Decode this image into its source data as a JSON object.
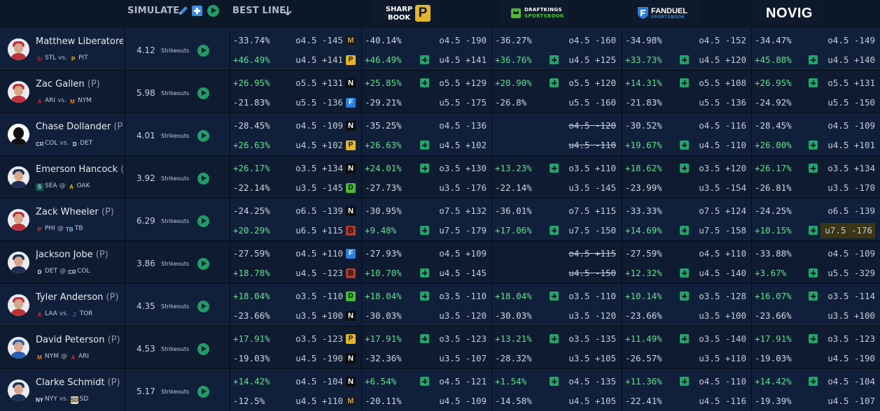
{
  "header": {
    "simulate_label": "SIMULATE",
    "best_line_label": "BEST LINE",
    "books": [
      {
        "key": "sharp",
        "w1": "SHARP",
        "w2": "BOOK",
        "mark": "P"
      },
      {
        "key": "dk",
        "w1": "DRAFTKINGS",
        "w2": "SPORTSBOOK"
      },
      {
        "key": "fd",
        "w1": "FANDUEL",
        "w2": "SPORTSBOOK"
      },
      {
        "key": "nv",
        "w1": "NOVIG"
      }
    ]
  },
  "colors": {
    "accent_green": "#5fe08d",
    "button_green": "#20a66a",
    "bg": "#0c1727"
  },
  "rows": [
    {
      "name": "Matthew Liberatore",
      "pos": "",
      "avatar": "red",
      "away": "STL",
      "sep": "vs.",
      "home": "PIT",
      "away_logo": "stl",
      "home_logo": "pit",
      "proj": "4.12",
      "stat": "Strikeouts",
      "best": [
        {
          "pct": "-33.74%",
          "odds": "o4.5 -145",
          "bk": "betmgm"
        },
        {
          "pct": "+46.49%",
          "odds": "u4.5 +141",
          "bk": "sharp"
        }
      ],
      "sharp": [
        {
          "pct": "-40.14%",
          "odds": "o4.5 -190",
          "add": false
        },
        {
          "pct": "+46.49%",
          "odds": "u4.5 +141",
          "add": true
        }
      ],
      "dk": [
        {
          "pct": "-36.27%",
          "odds": "o4.5 -160",
          "add": false
        },
        {
          "pct": "+36.76%",
          "odds": "u4.5 +125",
          "add": true
        }
      ],
      "fd": [
        {
          "pct": "-34.98%",
          "odds": "o4.5 -152",
          "add": false
        },
        {
          "pct": "+33.73%",
          "odds": "u4.5 +120",
          "add": true
        }
      ],
      "nv": [
        {
          "pct": "-34.47%",
          "odds": "o4.5 -149",
          "add": false
        },
        {
          "pct": "+45.88%",
          "odds": "u4.5 +140",
          "add": true
        }
      ]
    },
    {
      "name": "Zac Gallen",
      "pos": "(P)",
      "avatar": "red",
      "away": "ARI",
      "sep": "vs.",
      "home": "NYM",
      "away_logo": "ari",
      "home_logo": "nym",
      "proj": "5.98",
      "stat": "Strikeouts",
      "best": [
        {
          "pct": "+26.95%",
          "odds": "o5.5 +131",
          "bk": "novig"
        },
        {
          "pct": "-21.83%",
          "odds": "u5.5 -136",
          "bk": "fanduel"
        }
      ],
      "sharp": [
        {
          "pct": "+25.85%",
          "odds": "o5.5 +129",
          "add": true
        },
        {
          "pct": "-29.21%",
          "odds": "u5.5 -175",
          "add": false
        }
      ],
      "dk": [
        {
          "pct": "+20.90%",
          "odds": "o5.5 +120",
          "add": true
        },
        {
          "pct": "-26.8%",
          "odds": "u5.5 -160",
          "add": false
        }
      ],
      "fd": [
        {
          "pct": "+14.31%",
          "odds": "o5.5 +108",
          "add": true
        },
        {
          "pct": "-21.83%",
          "odds": "u5.5 -136",
          "add": false
        }
      ],
      "nv": [
        {
          "pct": "+26.95%",
          "odds": "o5.5 +131",
          "add": true
        },
        {
          "pct": "-24.92%",
          "odds": "u5.5 -150",
          "add": false
        }
      ]
    },
    {
      "name": "Chase Dollander",
      "pos": "(P)",
      "avatar": "blank",
      "away": "COL",
      "sep": "vs.",
      "home": "DET",
      "away_logo": "col",
      "home_logo": "det",
      "proj": "4.01",
      "stat": "Strikeouts",
      "best": [
        {
          "pct": "-28.45%",
          "odds": "o4.5 -109",
          "bk": "novig"
        },
        {
          "pct": "+26.63%",
          "odds": "u4.5 +102",
          "bk": "sharp"
        }
      ],
      "sharp": [
        {
          "pct": "-35.25%",
          "odds": "o4.5 -136",
          "add": false
        },
        {
          "pct": "+26.63%",
          "odds": "u4.5 +102",
          "add": true
        }
      ],
      "dk": [
        {
          "pct": "",
          "odds": "o4.5 -120",
          "add": false,
          "strike": true
        },
        {
          "pct": "",
          "odds": "u4.5 -110",
          "add": false,
          "strike": true
        }
      ],
      "fd": [
        {
          "pct": "-30.52%",
          "odds": "o4.5 -116",
          "add": false
        },
        {
          "pct": "+19.67%",
          "odds": "u4.5 -110",
          "add": true
        }
      ],
      "nv": [
        {
          "pct": "-28.45%",
          "odds": "o4.5 -109",
          "add": false
        },
        {
          "pct": "+26.00%",
          "odds": "u4.5 +101",
          "add": true
        }
      ]
    },
    {
      "name": "Emerson Hancock",
      "pos": "(P)",
      "avatar": "navy",
      "away": "SEA",
      "sep": "@",
      "home": "OAK",
      "away_logo": "sea",
      "home_logo": "oak",
      "proj": "3.92",
      "stat": "Strikeouts",
      "best": [
        {
          "pct": "+26.17%",
          "odds": "o3.5 +134",
          "bk": "novig"
        },
        {
          "pct": "-22.14%",
          "odds": "u3.5 -145",
          "bk": "dk"
        }
      ],
      "sharp": [
        {
          "pct": "+24.01%",
          "odds": "o3.5 +130",
          "add": true
        },
        {
          "pct": "-27.73%",
          "odds": "u3.5 -176",
          "add": false
        }
      ],
      "dk": [
        {
          "pct": "+13.23%",
          "odds": "o3.5 +110",
          "add": true
        },
        {
          "pct": "-22.14%",
          "odds": "u3.5 -145",
          "add": false
        }
      ],
      "fd": [
        {
          "pct": "+18.62%",
          "odds": "o3.5 +120",
          "add": true
        },
        {
          "pct": "-23.99%",
          "odds": "u3.5 -154",
          "add": false
        }
      ],
      "nv": [
        {
          "pct": "+26.17%",
          "odds": "o3.5 +134",
          "add": true
        },
        {
          "pct": "-26.81%",
          "odds": "u3.5 -170",
          "add": false
        }
      ]
    },
    {
      "name": "Zack Wheeler",
      "pos": "(P)",
      "avatar": "red",
      "away": "PHI",
      "sep": "@",
      "home": "TB",
      "away_logo": "phi",
      "home_logo": "tb",
      "proj": "6.29",
      "stat": "Strikeouts",
      "best": [
        {
          "pct": "-24.25%",
          "odds": "o6.5 -139",
          "bk": "novig"
        },
        {
          "pct": "+20.29%",
          "odds": "u6.5 +115",
          "bk": "bet365"
        }
      ],
      "sharp": [
        {
          "pct": "-30.95%",
          "odds": "o7.5 +132",
          "add": false
        },
        {
          "pct": "+9.48%",
          "odds": "u7.5 -179",
          "add": true
        }
      ],
      "dk": [
        {
          "pct": "-36.01%",
          "odds": "o7.5 +115",
          "add": false
        },
        {
          "pct": "+17.06%",
          "odds": "u7.5 -150",
          "add": true
        }
      ],
      "fd": [
        {
          "pct": "-33.33%",
          "odds": "o7.5 +124",
          "add": false
        },
        {
          "pct": "+14.69%",
          "odds": "u7.5 -158",
          "add": true
        }
      ],
      "nv": [
        {
          "pct": "-24.25%",
          "odds": "o6.5 -139",
          "add": false
        },
        {
          "pct": "+10.15%",
          "odds": "u7.5 -176",
          "add": true,
          "hl": true
        }
      ]
    },
    {
      "name": "Jackson Jobe",
      "pos": "(P)",
      "avatar": "navy",
      "away": "DET",
      "sep": "@",
      "home": "COL",
      "away_logo": "det",
      "home_logo": "col",
      "proj": "3.86",
      "stat": "Strikeouts",
      "best": [
        {
          "pct": "-27.59%",
          "odds": "o4.5 +110",
          "bk": "fanduel"
        },
        {
          "pct": "+18.78%",
          "odds": "u4.5 -123",
          "bk": "bet365"
        }
      ],
      "sharp": [
        {
          "pct": "-27.93%",
          "odds": "o4.5 +109",
          "add": false
        },
        {
          "pct": "+10.70%",
          "odds": "u4.5 -145",
          "add": true
        }
      ],
      "dk": [
        {
          "pct": "",
          "odds": "o4.5 +115",
          "add": false,
          "strike": true
        },
        {
          "pct": "",
          "odds": "u4.5 -150",
          "add": false,
          "strike": true
        }
      ],
      "fd": [
        {
          "pct": "-27.59%",
          "odds": "o4.5 +110",
          "add": false
        },
        {
          "pct": "+12.32%",
          "odds": "u4.5 -140",
          "add": true
        }
      ],
      "nv": [
        {
          "pct": "-33.88%",
          "odds": "o4.5 -109",
          "add": false
        },
        {
          "pct": "+3.67%",
          "odds": "u5.5 -329",
          "add": true
        }
      ]
    },
    {
      "name": "Tyler Anderson",
      "pos": "(P)",
      "avatar": "red",
      "away": "LAA",
      "sep": "vs.",
      "home": "TOR",
      "away_logo": "laa",
      "home_logo": "tor",
      "proj": "4.35",
      "stat": "Strikeouts",
      "best": [
        {
          "pct": "+18.04%",
          "odds": "o3.5 -110",
          "bk": "dk"
        },
        {
          "pct": "-23.66%",
          "odds": "u3.5 +100",
          "bk": "novig"
        }
      ],
      "sharp": [
        {
          "pct": "+18.04%",
          "odds": "o3.5 -110",
          "add": true
        },
        {
          "pct": "-30.03%",
          "odds": "u3.5 -120",
          "add": false
        }
      ],
      "dk": [
        {
          "pct": "+18.04%",
          "odds": "o3.5 -110",
          "add": true
        },
        {
          "pct": "-30.03%",
          "odds": "u3.5 -120",
          "add": false
        }
      ],
      "fd": [
        {
          "pct": "+10.14%",
          "odds": "o3.5 -128",
          "add": true
        },
        {
          "pct": "-23.66%",
          "odds": "u3.5 +100",
          "add": false
        }
      ],
      "nv": [
        {
          "pct": "+16.07%",
          "odds": "o3.5 -114",
          "add": true
        },
        {
          "pct": "-23.66%",
          "odds": "u3.5 +100",
          "add": false
        }
      ]
    },
    {
      "name": "David Peterson",
      "pos": "(P)",
      "avatar": "blue",
      "away": "NYM",
      "sep": "@",
      "home": "ARI",
      "away_logo": "nym",
      "home_logo": "ari",
      "proj": "4.53",
      "stat": "Strikeouts",
      "best": [
        {
          "pct": "+17.91%",
          "odds": "o3.5 -123",
          "bk": "sharp"
        },
        {
          "pct": "-19.03%",
          "odds": "u4.5 -190",
          "bk": "novig"
        }
      ],
      "sharp": [
        {
          "pct": "+17.91%",
          "odds": "o3.5 -123",
          "add": true
        },
        {
          "pct": "-32.36%",
          "odds": "u3.5 -107",
          "add": false
        }
      ],
      "dk": [
        {
          "pct": "+13.21%",
          "odds": "o3.5 -135",
          "add": true
        },
        {
          "pct": "-28.32%",
          "odds": "u3.5 +105",
          "add": false
        }
      ],
      "fd": [
        {
          "pct": "+11.49%",
          "odds": "o3.5 -140",
          "add": true
        },
        {
          "pct": "-26.57%",
          "odds": "u3.5 +110",
          "add": false
        }
      ],
      "nv": [
        {
          "pct": "+17.91%",
          "odds": "o3.5 -123",
          "add": true
        },
        {
          "pct": "-19.03%",
          "odds": "u4.5 -190",
          "add": false
        }
      ]
    },
    {
      "name": "Clarke Schmidt",
      "pos": "(P)",
      "avatar": "navy",
      "away": "NYY",
      "sep": "vs.",
      "home": "SD",
      "away_logo": "nyy",
      "home_logo": "sd",
      "proj": "5.17",
      "stat": "Strikeouts",
      "best": [
        {
          "pct": "+14.42%",
          "odds": "o4.5 -104",
          "bk": "novig"
        },
        {
          "pct": "-12.5%",
          "odds": "u4.5 +110",
          "bk": "betmgm"
        }
      ],
      "sharp": [
        {
          "pct": "+6.54%",
          "odds": "o4.5 -121",
          "add": true
        },
        {
          "pct": "-20.11%",
          "odds": "u4.5 -109",
          "add": false
        }
      ],
      "dk": [
        {
          "pct": "+1.54%",
          "odds": "o4.5 -135",
          "add": true
        },
        {
          "pct": "-14.58%",
          "odds": "u4.5 +105",
          "add": false
        }
      ],
      "fd": [
        {
          "pct": "+11.36%",
          "odds": "o4.5 -110",
          "add": true
        },
        {
          "pct": "-22.41%",
          "odds": "u4.5 -116",
          "add": false
        }
      ],
      "nv": [
        {
          "pct": "+14.42%",
          "odds": "o4.5 -104",
          "add": true
        },
        {
          "pct": "-19.39%",
          "odds": "u4.5 -107",
          "add": false
        }
      ]
    }
  ]
}
